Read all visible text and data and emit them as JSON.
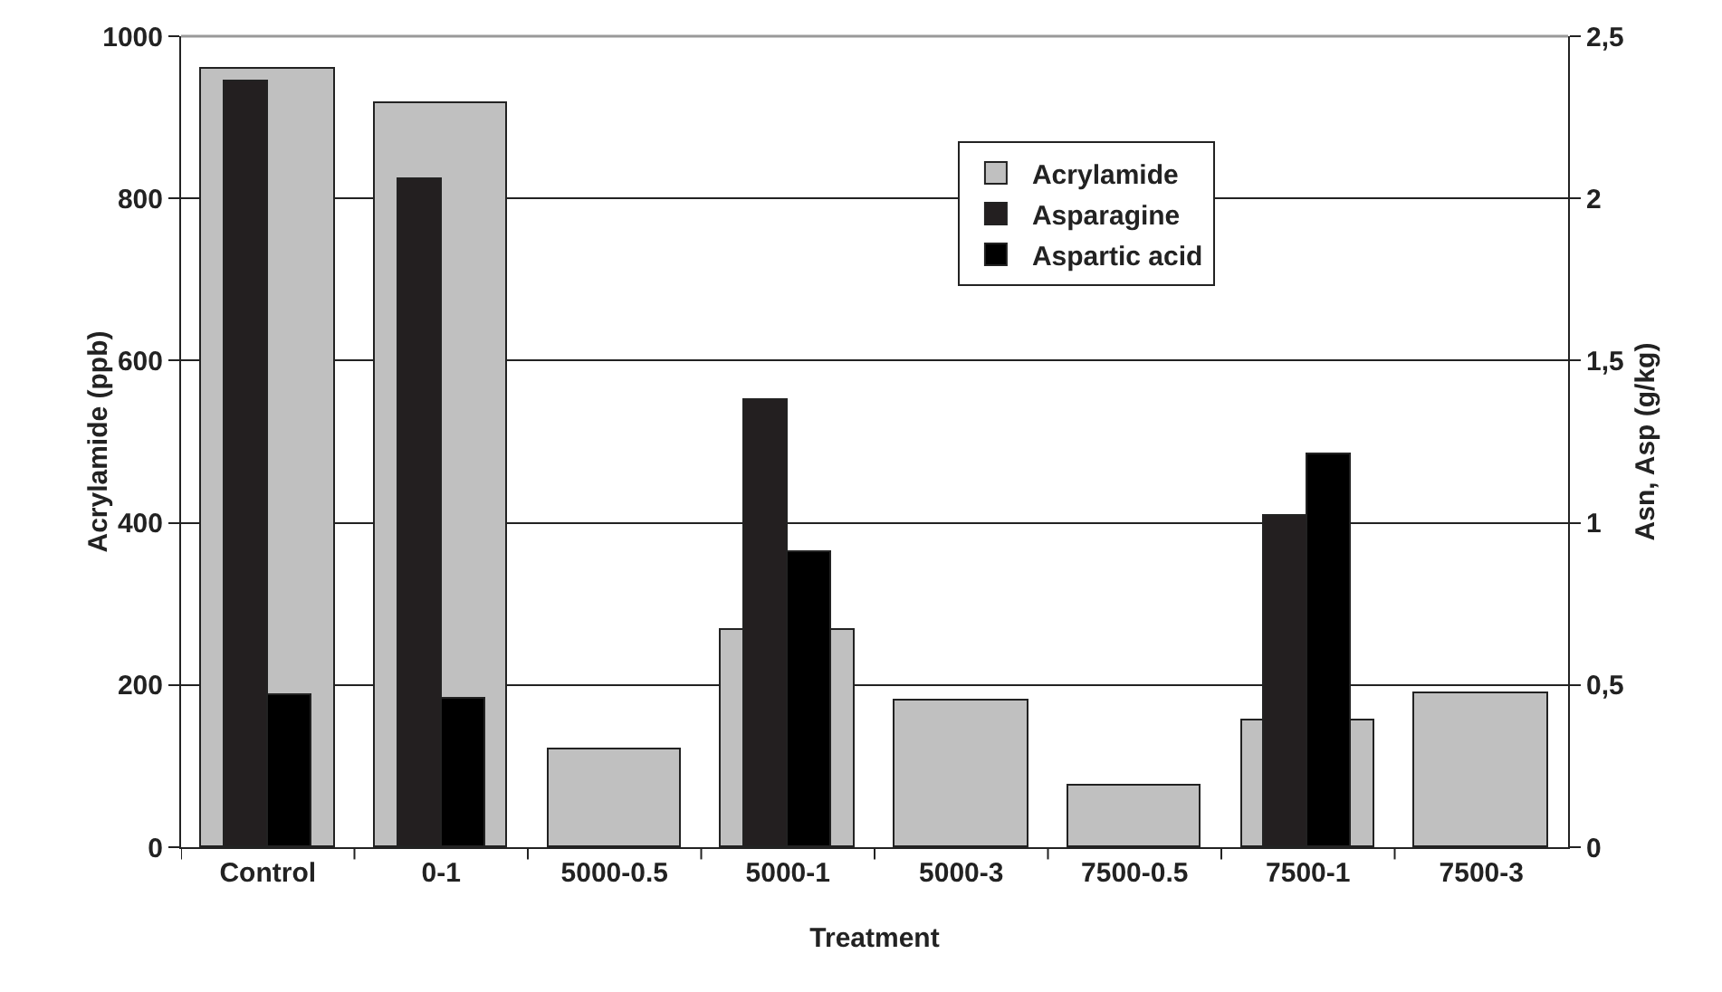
{
  "chart_data": {
    "type": "bar",
    "xlabel": "Treatment",
    "ylabel": "Acrylamide (ppb)",
    "y2label": "Asn, Asp (g/kg)",
    "categories": [
      "Control",
      "0-1",
      "5000-0.5",
      "5000-1",
      "5000-3",
      "7500-0.5",
      "7500-1",
      "7500-3"
    ],
    "series": [
      {
        "name": "Acrylamide",
        "color": "#c0c0c0",
        "values": [
          960,
          918,
          120,
          268,
          181,
          77,
          157,
          190
        ]
      },
      {
        "name": "Asparagine",
        "color": "#231f20",
        "axis": "y2",
        "values": [
          2.36,
          2.06,
          null,
          1.38,
          null,
          null,
          1.02,
          null
        ]
      },
      {
        "name": "Aspartic acid",
        "color": "#000000",
        "axis": "y2",
        "values": [
          0.47,
          0.46,
          null,
          0.91,
          null,
          null,
          1.21,
          null
        ]
      }
    ],
    "ylim": [
      0,
      1000
    ],
    "yticks": [
      0,
      200,
      400,
      600,
      800,
      1000
    ],
    "y2lim": [
      0,
      2.5
    ],
    "y2ticks": [
      0,
      {
        "value": 0.5,
        "label": "0,5"
      },
      1,
      {
        "value": 1.5,
        "label": "1,5"
      },
      2,
      {
        "value": 2.5,
        "label": "2,5"
      }
    ],
    "grid": "y",
    "legend": "top right"
  }
}
